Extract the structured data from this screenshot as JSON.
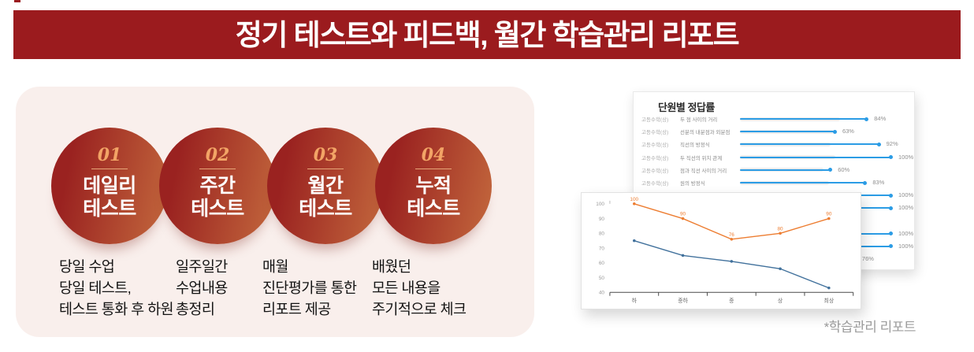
{
  "banner": {
    "title": "정기 테스트와 피드백, 월간 학습관리 리포트"
  },
  "colors": {
    "banner_red": "#9B1B1E",
    "panel_pink": "#F9EFEC",
    "circle_gradient_from": "#9A2220",
    "circle_gradient_to": "#C2663C",
    "step_number_orange": "#F2A466",
    "bar_blue": "#2B9CE5",
    "bar_track_gray": "#ECECEC",
    "line_orange": "#ED7D31",
    "line_blue": "#41719C"
  },
  "steps": [
    {
      "num": "01",
      "title_lines": [
        "데일리",
        "테스트"
      ],
      "desc": [
        "당일 수업",
        "당일 테스트,",
        "테스트 통화 후 하원"
      ]
    },
    {
      "num": "02",
      "title_lines": [
        "주간",
        "테스트"
      ],
      "desc": [
        "일주일간",
        "수업내용",
        "총정리"
      ]
    },
    {
      "num": "03",
      "title_lines": [
        "월간",
        "테스트"
      ],
      "desc": [
        "매월",
        "진단평가를 통한",
        "리포트 제공"
      ]
    },
    {
      "num": "04",
      "title_lines": [
        "누적",
        "테스트"
      ],
      "desc": [
        "배웠던",
        "모든 내용을",
        "주기적으로 체크"
      ]
    }
  ],
  "report": {
    "caption": "*학습관리 리포트"
  },
  "chart_data": [
    {
      "type": "bar",
      "title": "단원별 정답률",
      "orientation": "horizontal",
      "unit": "%",
      "xlim": [
        0,
        100
      ],
      "row_prefix": "고등수학(상)",
      "categories": [
        "두 점 사이의 거리",
        "선분의 내분점과 외분점",
        "직선의 방정식",
        "두 직선의 위치 관계",
        "점과 직선 사이의 거리",
        "원의 방정식"
      ],
      "values": [
        84,
        63,
        92,
        100,
        60,
        83
      ],
      "gray_track_values_estimate": [
        66,
        62,
        60,
        63,
        55,
        59
      ],
      "partially_hidden_values": [
        100,
        100,
        null,
        100,
        100,
        76
      ]
    },
    {
      "type": "line",
      "categories": [
        "하",
        "중하",
        "중",
        "상",
        "최상"
      ],
      "series": [
        {
          "name": "orange-series",
          "color": "#ED7D31",
          "values": [
            100,
            90,
            76,
            80,
            90
          ],
          "labels_shown": true
        },
        {
          "name": "blue-series",
          "color": "#41719C",
          "values": [
            75,
            65,
            61,
            56,
            43
          ],
          "labels_shown": false
        }
      ],
      "ylim": [
        40,
        100
      ],
      "yticks": [
        40,
        50,
        60,
        70,
        80,
        90,
        100
      ],
      "grid": false,
      "legend": false
    }
  ]
}
